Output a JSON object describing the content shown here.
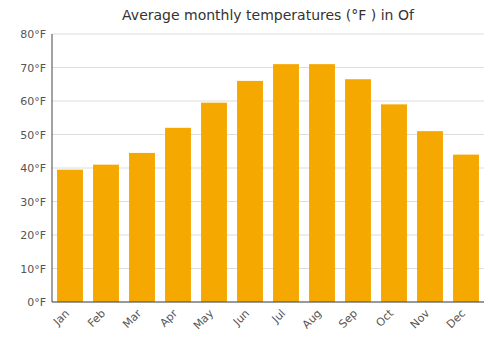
{
  "chart_data": {
    "type": "bar",
    "title": "Average monthly temperatures (°F ) in Of",
    "categories": [
      "Jan",
      "Feb",
      "Mar",
      "Apr",
      "May",
      "Jun",
      "Jul",
      "Aug",
      "Sep",
      "Oct",
      "Nov",
      "Dec"
    ],
    "values": [
      39.5,
      41.0,
      44.5,
      52.0,
      59.5,
      66.0,
      71.0,
      71.0,
      66.5,
      59.0,
      51.0,
      44.0
    ],
    "color": "#F5A800",
    "ylim": [
      0,
      80
    ],
    "yticks": [
      {
        "value": 0,
        "label": "0°F"
      },
      {
        "value": 10,
        "label": "10°F"
      },
      {
        "value": 20,
        "label": "20°F"
      },
      {
        "value": 30,
        "label": "30°F"
      },
      {
        "value": 40,
        "label": "40°F"
      },
      {
        "value": 50,
        "label": "50°F"
      },
      {
        "value": 60,
        "label": "60°F"
      },
      {
        "value": 70,
        "label": "70°F"
      },
      {
        "value": 80,
        "label": "80°F"
      }
    ],
    "grid": true
  }
}
